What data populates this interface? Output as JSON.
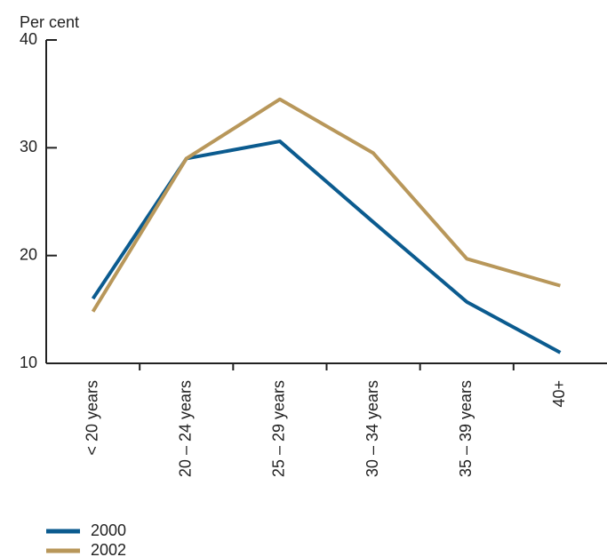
{
  "chart_data": {
    "type": "line",
    "y_label": "Per cent",
    "categories": [
      "< 20 years",
      "20 – 24 years",
      "25 – 29 years",
      "30 – 34 years",
      "35 – 39 years",
      "40+"
    ],
    "series": [
      {
        "name": "2000",
        "color": "#0b5b8f",
        "values": [
          16.0,
          29.0,
          30.6,
          23.1,
          15.7,
          11.0
        ]
      },
      {
        "name": "2002",
        "color": "#b8975a",
        "values": [
          14.8,
          29.0,
          34.5,
          29.5,
          19.7,
          17.2
        ]
      }
    ],
    "ylim": [
      10,
      40
    ],
    "yticks": [
      10,
      20,
      30,
      40
    ],
    "grid": false
  }
}
